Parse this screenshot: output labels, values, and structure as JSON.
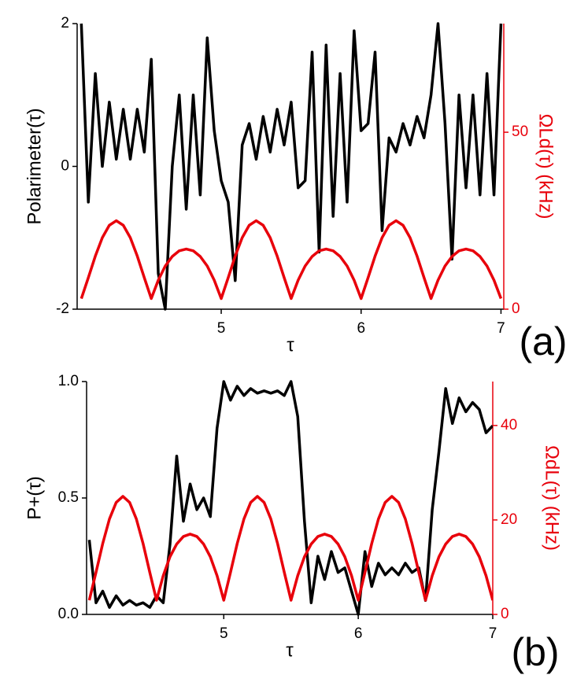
{
  "chart_data": [
    {
      "type": "line",
      "label": "(a)",
      "x_label": "τ",
      "y_label": "Polarimeter(τ)",
      "y2_label": "ΩLd(τ) (kHz)",
      "x": [
        4.0,
        4.05,
        4.1,
        4.15,
        4.2,
        4.25,
        4.3,
        4.35,
        4.4,
        4.45,
        4.5,
        4.55,
        4.6,
        4.65,
        4.7,
        4.75,
        4.8,
        4.85,
        4.9,
        4.95,
        5.0,
        5.05,
        5.1,
        5.15,
        5.2,
        5.25,
        5.3,
        5.35,
        5.4,
        5.45,
        5.5,
        5.55,
        5.6,
        5.65,
        5.7,
        5.75,
        5.8,
        5.85,
        5.9,
        5.95,
        6.0,
        6.05,
        6.1,
        6.15,
        6.2,
        6.25,
        6.3,
        6.35,
        6.4,
        6.45,
        6.5,
        6.55,
        6.6,
        6.65,
        6.7,
        6.75,
        6.8,
        6.85,
        6.9,
        6.95,
        7.0
      ],
      "xlim": [
        3.97,
        7.02
      ],
      "xticks": [
        5,
        6,
        7
      ],
      "ylim": [
        -2,
        2
      ],
      "yticks": [
        -2,
        0,
        2
      ],
      "y2lim": [
        0,
        80.7
      ],
      "y2ticks": [
        0,
        50
      ],
      "series": [
        {
          "color": "#000000",
          "axis": "y",
          "values": [
            2.0,
            -0.5,
            1.3,
            0.0,
            0.9,
            0.1,
            0.8,
            0.1,
            0.8,
            0.2,
            1.5,
            -1.5,
            -2.0,
            0.0,
            1.0,
            -0.6,
            1.0,
            -0.4,
            1.8,
            0.5,
            -0.2,
            -0.5,
            -1.6,
            0.3,
            0.6,
            0.1,
            0.7,
            0.2,
            0.8,
            0.3,
            0.9,
            -0.3,
            -0.2,
            1.6,
            -1.2,
            1.7,
            -0.7,
            1.3,
            -0.5,
            1.9,
            0.5,
            0.6,
            1.6,
            -0.9,
            0.4,
            0.2,
            0.6,
            0.3,
            0.7,
            0.4,
            1.0,
            2.0,
            0.6,
            -1.3,
            1.0,
            -0.3,
            1.0,
            -0.4,
            1.3,
            -0.4,
            2.0
          ]
        },
        {
          "color": "#e8000b",
          "axis": "y2",
          "values": [
            3,
            8.9,
            15.0,
            20.2,
            23.7,
            25,
            23.7,
            20.2,
            15.0,
            8.9,
            3,
            8.2,
            12.2,
            14.9,
            16.5,
            17,
            16.5,
            14.9,
            12.2,
            8.2,
            3,
            8.9,
            15.0,
            20.2,
            23.7,
            25,
            23.7,
            20.2,
            15.0,
            8.9,
            3,
            8.2,
            12.2,
            14.9,
            16.5,
            17,
            16.5,
            14.9,
            12.2,
            8.2,
            3,
            8.9,
            15.0,
            20.2,
            23.7,
            25,
            23.7,
            20.2,
            15.0,
            8.9,
            3,
            8.2,
            12.2,
            14.9,
            16.5,
            17,
            16.5,
            14.9,
            12.2,
            8.2,
            3
          ]
        }
      ]
    },
    {
      "type": "line",
      "label": "(b)",
      "x_label": "τ",
      "y_label": "P+(τ)",
      "y2_label": "ΩdL(τ) (kHz)",
      "x": [
        4.0,
        4.05,
        4.1,
        4.15,
        4.2,
        4.25,
        4.3,
        4.35,
        4.4,
        4.45,
        4.5,
        4.55,
        4.6,
        4.65,
        4.7,
        4.75,
        4.8,
        4.85,
        4.9,
        4.95,
        5.0,
        5.05,
        5.1,
        5.15,
        5.2,
        5.25,
        5.3,
        5.35,
        5.4,
        5.45,
        5.5,
        5.55,
        5.6,
        5.65,
        5.7,
        5.75,
        5.8,
        5.85,
        5.9,
        5.95,
        6.0,
        6.05,
        6.1,
        6.15,
        6.2,
        6.25,
        6.3,
        6.35,
        6.4,
        6.45,
        6.5,
        6.55,
        6.6,
        6.65,
        6.7,
        6.75,
        6.8,
        6.85,
        6.9,
        6.95,
        7.0
      ],
      "xlim": [
        3.98,
        7.0
      ],
      "xticks": [
        5,
        6,
        7
      ],
      "ylim": [
        0,
        1
      ],
      "yticks": [
        {
          "value": 0,
          "label": "0.0"
        },
        0.5,
        {
          "value": 1,
          "label": "1.0"
        }
      ],
      "y2lim": [
        0,
        49.3
      ],
      "y2ticks": [
        0,
        20,
        40
      ],
      "series": [
        {
          "color": "#000000",
          "axis": "y",
          "values": [
            0.32,
            0.05,
            0.1,
            0.03,
            0.08,
            0.04,
            0.06,
            0.04,
            0.05,
            0.03,
            0.08,
            0.05,
            0.3,
            0.68,
            0.4,
            0.56,
            0.45,
            0.5,
            0.42,
            0.8,
            1.0,
            0.92,
            0.98,
            0.94,
            0.97,
            0.95,
            0.96,
            0.95,
            0.96,
            0.94,
            1.0,
            0.85,
            0.4,
            0.05,
            0.25,
            0.15,
            0.27,
            0.18,
            0.2,
            0.1,
            0.0,
            0.27,
            0.12,
            0.22,
            0.17,
            0.2,
            0.17,
            0.22,
            0.18,
            0.2,
            0.06,
            0.45,
            0.7,
            0.97,
            0.82,
            0.93,
            0.87,
            0.91,
            0.88,
            0.78,
            0.81
          ]
        },
        {
          "color": "#e8000b",
          "axis": "y2",
          "values": [
            3,
            8.9,
            15.0,
            20.2,
            23.7,
            25,
            23.7,
            20.2,
            15.0,
            8.9,
            3,
            8.2,
            12.2,
            14.9,
            16.5,
            17,
            16.5,
            14.9,
            12.2,
            8.2,
            3,
            8.9,
            15.0,
            20.2,
            23.7,
            25,
            23.7,
            20.2,
            15.0,
            8.9,
            3,
            8.2,
            12.2,
            14.9,
            16.5,
            17,
            16.5,
            14.9,
            12.2,
            8.2,
            3,
            8.9,
            15.0,
            20.2,
            23.7,
            25,
            23.7,
            20.2,
            15.0,
            8.9,
            3,
            8.2,
            12.2,
            14.9,
            16.5,
            17,
            16.5,
            14.9,
            12.2,
            8.2,
            3
          ]
        }
      ]
    }
  ]
}
